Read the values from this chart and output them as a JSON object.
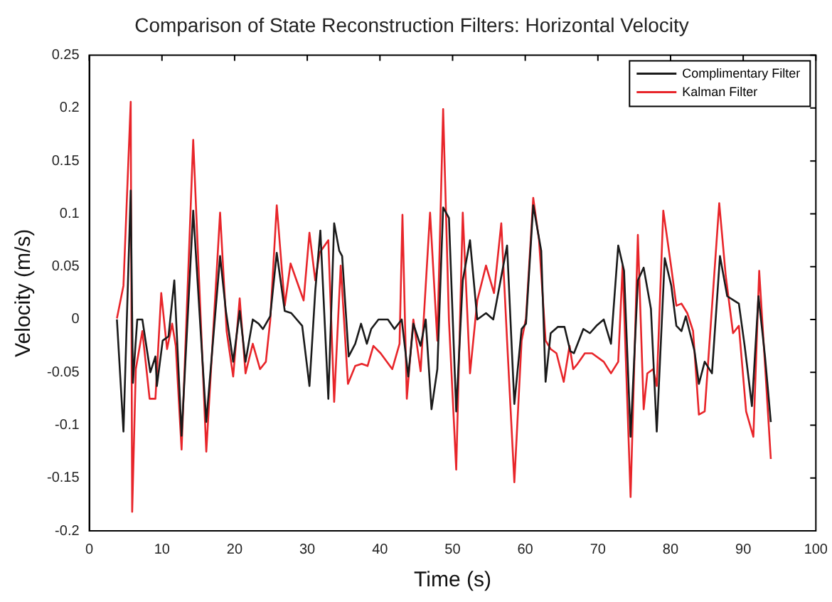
{
  "chart_data": {
    "type": "line",
    "title": "Comparison of State Reconstruction Filters: Horizontal Velocity",
    "xlabel": "Time (s)",
    "ylabel": "Velocity (m/s)",
    "xlim": [
      0,
      100
    ],
    "xticks": [
      0,
      10,
      20,
      30,
      40,
      50,
      60,
      70,
      80,
      90,
      100
    ],
    "ylim": [
      -0.2,
      0.25
    ],
    "yticks": [
      -0.2,
      -0.15,
      -0.1,
      -0.05,
      0,
      0.05,
      0.1,
      0.15,
      0.2,
      0.25
    ],
    "grid": false,
    "legend": "top right",
    "marker": "none",
    "line_style": "solid",
    "series": [
      {
        "name": "Complimentary Filter",
        "color": "#1a1a1a",
        "x": [
          3.8,
          4.7,
          5.7,
          6.0,
          6.6,
          7.3,
          8.4,
          9.1,
          9.3,
          10.1,
          10.9,
          11.7,
          12.7,
          14.3,
          16.1,
          18.0,
          18.8,
          19.8,
          20.7,
          21.5,
          22.5,
          23.3,
          23.9,
          24.9,
          25.8,
          26.9,
          27.8,
          29.3,
          30.3,
          31.1,
          31.8,
          32.9,
          33.7,
          34.4,
          34.8,
          35.7,
          36.6,
          37.4,
          38.2,
          38.8,
          39.8,
          41.1,
          42.0,
          43.0,
          43.9,
          44.6,
          45.6,
          46.3,
          47.1,
          47.9,
          48.7,
          49.5,
          50.5,
          51.4,
          52.4,
          53.4,
          54.6,
          55.6,
          57.5,
          58.5,
          59.5,
          60.1,
          61.1,
          62.2,
          62.8,
          63.5,
          64.5,
          65.4,
          66.2,
          66.7,
          68.0,
          68.9,
          69.8,
          70.8,
          71.8,
          72.8,
          73.6,
          74.5,
          75.5,
          76.3,
          77.3,
          78.1,
          79.2,
          80.1,
          80.8,
          81.5,
          82.1,
          83.3,
          83.9,
          84.7,
          85.7,
          86.8,
          87.8,
          88.7,
          89.4,
          90.2,
          91.2,
          92.1,
          93.0,
          93.8
        ],
        "values": [
          0,
          -0.106,
          0.122,
          -0.06,
          0,
          0,
          -0.05,
          -0.035,
          -0.063,
          -0.02,
          -0.016,
          0.037,
          -0.11,
          0.103,
          -0.097,
          0.06,
          0.008,
          -0.04,
          0.008,
          -0.04,
          0,
          -0.004,
          -0.009,
          0.003,
          0.063,
          0.008,
          0.006,
          -0.006,
          -0.063,
          0.027,
          0.084,
          -0.075,
          0.091,
          0.065,
          0.06,
          -0.035,
          -0.023,
          -0.004,
          -0.023,
          -0.009,
          0,
          0,
          -0.009,
          0,
          -0.054,
          -0.004,
          -0.025,
          0,
          -0.085,
          -0.047,
          0.106,
          0.096,
          -0.087,
          0.037,
          0.075,
          0,
          0.006,
          0,
          0.07,
          -0.08,
          -0.009,
          -0.004,
          0.108,
          0.065,
          -0.059,
          -0.013,
          -0.007,
          -0.007,
          -0.03,
          -0.032,
          -0.009,
          -0.013,
          -0.006,
          0,
          -0.023,
          0.07,
          0.046,
          -0.111,
          0.037,
          0.049,
          0.01,
          -0.106,
          0.058,
          0.032,
          -0.006,
          -0.011,
          0.003,
          -0.03,
          -0.061,
          -0.04,
          -0.051,
          0.06,
          0.022,
          0.018,
          0.015,
          -0.025,
          -0.082,
          0.022,
          -0.035,
          -0.097
        ]
      },
      {
        "name": "Kalman Filter",
        "color": "#e8252a",
        "x": [
          3.8,
          4.7,
          5.7,
          5.9,
          6.4,
          7.3,
          8.3,
          9.1,
          9.9,
          10.7,
          11.4,
          11.9,
          12.7,
          14.3,
          16.1,
          18.0,
          18.9,
          19.8,
          20.7,
          21.5,
          22.5,
          23.5,
          24.3,
          24.9,
          25.8,
          26.9,
          27.7,
          29.5,
          30.3,
          31.1,
          31.7,
          32.9,
          33.7,
          34.6,
          35.6,
          36.6,
          37.5,
          38.3,
          39.1,
          40.1,
          41.7,
          42.7,
          43.1,
          43.7,
          44.6,
          45.6,
          46.9,
          47.9,
          48.7,
          49.5,
          50.5,
          51.4,
          52.4,
          53.4,
          54.6,
          55.7,
          56.7,
          57.5,
          58.5,
          59.5,
          60.1,
          61.1,
          61.9,
          62.8,
          63.5,
          64.3,
          65.3,
          66.1,
          66.6,
          67.2,
          68.2,
          69.2,
          70.8,
          71.8,
          72.8,
          73.4,
          74.5,
          75.5,
          76.3,
          76.8,
          77.6,
          78.1,
          79.0,
          80.1,
          80.8,
          81.5,
          82.3,
          83.1,
          83.9,
          84.7,
          86.7,
          87.6,
          88.6,
          89.4,
          90.4,
          91.4,
          92.2,
          93.8
        ],
        "values": [
          0.001,
          0.032,
          0.206,
          -0.182,
          -0.047,
          -0.011,
          -0.075,
          -0.075,
          0.025,
          -0.028,
          -0.004,
          -0.025,
          -0.123,
          0.17,
          -0.125,
          0.101,
          -0.011,
          -0.054,
          0.02,
          -0.051,
          -0.023,
          -0.047,
          -0.04,
          -0.001,
          0.108,
          0.013,
          0.053,
          0.018,
          0.082,
          0.037,
          0.063,
          0.075,
          -0.078,
          0.051,
          -0.061,
          -0.044,
          -0.042,
          -0.044,
          -0.025,
          -0.032,
          -0.047,
          -0.023,
          0.099,
          -0.075,
          0,
          -0.049,
          0.101,
          -0.02,
          0.199,
          -0.001,
          -0.142,
          0.101,
          -0.051,
          0.018,
          0.051,
          0.025,
          0.091,
          -0.02,
          -0.154,
          -0.02,
          0.001,
          0.115,
          0.075,
          -0.02,
          -0.028,
          -0.032,
          -0.059,
          -0.025,
          -0.047,
          -0.042,
          -0.032,
          -0.032,
          -0.04,
          -0.051,
          -0.04,
          0.051,
          -0.168,
          0.08,
          -0.085,
          -0.051,
          -0.047,
          -0.063,
          0.103,
          0.049,
          0.013,
          0.015,
          0.006,
          -0.011,
          -0.09,
          -0.087,
          0.11,
          0.041,
          -0.013,
          -0.006,
          -0.087,
          -0.111,
          0.046,
          -0.132
        ]
      }
    ]
  }
}
